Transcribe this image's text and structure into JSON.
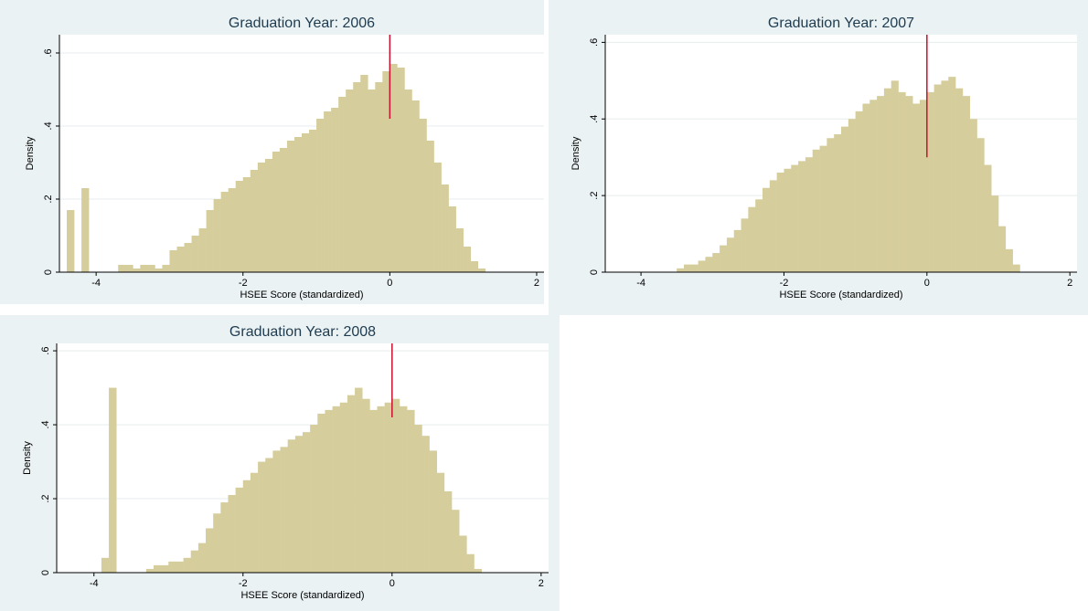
{
  "chart_data": [
    {
      "type": "histogram",
      "title": "Graduation Year: 2006",
      "xlabel": "HSEE Score (standardized)",
      "ylabel": "Density",
      "bins": [
        -4.4,
        -4.3,
        -4.2,
        -4.1,
        -4.0,
        -3.9,
        -3.8,
        -3.7,
        -3.6,
        -3.5,
        -3.4,
        -3.3,
        -3.2,
        -3.1,
        -3.0,
        -2.9,
        -2.8,
        -2.7,
        -2.6,
        -2.5,
        -2.4,
        -2.3,
        -2.2,
        -2.1,
        -2.0,
        -1.9,
        -1.8,
        -1.7,
        -1.6,
        -1.5,
        -1.4,
        -1.3,
        -1.2,
        -1.1,
        -1.0,
        -0.9,
        -0.8,
        -0.7,
        -0.6,
        -0.5,
        -0.4,
        -0.3,
        -0.2,
        -0.1,
        0.0,
        0.1,
        0.2,
        0.3,
        0.4,
        0.5,
        0.6,
        0.7,
        0.8,
        0.9,
        1.0,
        1.1,
        1.2,
        1.3,
        1.4,
        1.5,
        1.6
      ],
      "values": [
        0.17,
        0,
        0.23,
        0,
        0,
        0,
        0,
        0.02,
        0.02,
        0.01,
        0.02,
        0.02,
        0.01,
        0.02,
        0.06,
        0.07,
        0.08,
        0.1,
        0.12,
        0.17,
        0.2,
        0.22,
        0.23,
        0.25,
        0.26,
        0.28,
        0.3,
        0.31,
        0.33,
        0.34,
        0.36,
        0.37,
        0.38,
        0.39,
        0.42,
        0.44,
        0.45,
        0.48,
        0.5,
        0.52,
        0.54,
        0.5,
        0.52,
        0.55,
        0.57,
        0.56,
        0.5,
        0.47,
        0.42,
        0.36,
        0.3,
        0.24,
        0.18,
        0.12,
        0.07,
        0.03,
        0.01,
        0,
        0,
        0
      ],
      "color": "#d6cd9c",
      "cutoff": {
        "x": 0,
        "ymin": 0.42,
        "color": "#c8102e"
      },
      "xlim": [
        -4.5,
        2.1
      ],
      "ylim": [
        0,
        0.65
      ],
      "xticks": [
        -4,
        -2,
        0,
        2
      ],
      "yticks": [
        0,
        {
          "value": 0.2,
          "label": ".2"
        },
        {
          "value": 0.4,
          "label": ".4"
        },
        {
          "value": 0.6,
          "label": ".6"
        }
      ],
      "grid": true
    },
    {
      "type": "histogram",
      "title": "Graduation Year: 2007",
      "xlabel": "HSEE Score (standardized)",
      "ylabel": "Density",
      "bins": [
        -4.4,
        -4.3,
        -4.2,
        -4.1,
        -4.0,
        -3.9,
        -3.8,
        -3.7,
        -3.6,
        -3.5,
        -3.4,
        -3.3,
        -3.2,
        -3.1,
        -3.0,
        -2.9,
        -2.8,
        -2.7,
        -2.6,
        -2.5,
        -2.4,
        -2.3,
        -2.2,
        -2.1,
        -2.0,
        -1.9,
        -1.8,
        -1.7,
        -1.6,
        -1.5,
        -1.4,
        -1.3,
        -1.2,
        -1.1,
        -1.0,
        -0.9,
        -0.8,
        -0.7,
        -0.6,
        -0.5,
        -0.4,
        -0.3,
        -0.2,
        -0.1,
        0.0,
        0.1,
        0.2,
        0.3,
        0.4,
        0.5,
        0.6,
        0.7,
        0.8,
        0.9,
        1.0,
        1.1,
        1.2,
        1.3,
        1.4,
        1.5,
        1.6
      ],
      "values": [
        0,
        0,
        0,
        0,
        0,
        0,
        0,
        0,
        0,
        0.01,
        0.02,
        0.02,
        0.03,
        0.04,
        0.05,
        0.07,
        0.09,
        0.11,
        0.14,
        0.17,
        0.19,
        0.22,
        0.24,
        0.26,
        0.27,
        0.28,
        0.29,
        0.3,
        0.32,
        0.33,
        0.35,
        0.36,
        0.38,
        0.4,
        0.42,
        0.44,
        0.45,
        0.46,
        0.48,
        0.5,
        0.47,
        0.46,
        0.44,
        0.45,
        0.47,
        0.49,
        0.5,
        0.51,
        0.48,
        0.46,
        0.4,
        0.35,
        0.28,
        0.2,
        0.12,
        0.06,
        0.02,
        0,
        0,
        0
      ],
      "color": "#d6cd9c",
      "cutoff": {
        "x": 0,
        "ymin": 0.3,
        "color": "#c8102e"
      },
      "xlim": [
        -4.5,
        2.1
      ],
      "ylim": [
        0,
        0.62
      ],
      "xticks": [
        -4,
        -2,
        0,
        2
      ],
      "yticks": [
        0,
        {
          "value": 0.2,
          "label": ".2"
        },
        {
          "value": 0.4,
          "label": ".4"
        },
        {
          "value": 0.6,
          "label": ".6"
        }
      ],
      "grid": true
    },
    {
      "type": "histogram",
      "title": "Graduation Year: 2008",
      "xlabel": "HSEE Score (standardized)",
      "ylabel": "Density",
      "bins": [
        -4.4,
        -4.3,
        -4.2,
        -4.1,
        -4.0,
        -3.9,
        -3.8,
        -3.7,
        -3.6,
        -3.5,
        -3.4,
        -3.3,
        -3.2,
        -3.1,
        -3.0,
        -2.9,
        -2.8,
        -2.7,
        -2.6,
        -2.5,
        -2.4,
        -2.3,
        -2.2,
        -2.1,
        -2.0,
        -1.9,
        -1.8,
        -1.7,
        -1.6,
        -1.5,
        -1.4,
        -1.3,
        -1.2,
        -1.1,
        -1.0,
        -0.9,
        -0.8,
        -0.7,
        -0.6,
        -0.5,
        -0.4,
        -0.3,
        -0.2,
        -0.1,
        0.0,
        0.1,
        0.2,
        0.3,
        0.4,
        0.5,
        0.6,
        0.7,
        0.8,
        0.9,
        1.0,
        1.1,
        1.2,
        1.3,
        1.4,
        1.5,
        1.6
      ],
      "values": [
        0,
        0,
        0,
        0,
        0,
        0.04,
        0.5,
        0,
        0,
        0,
        0,
        0.01,
        0.02,
        0.02,
        0.03,
        0.03,
        0.04,
        0.06,
        0.08,
        0.12,
        0.16,
        0.19,
        0.21,
        0.23,
        0.25,
        0.27,
        0.3,
        0.31,
        0.33,
        0.34,
        0.36,
        0.37,
        0.38,
        0.4,
        0.43,
        0.44,
        0.45,
        0.46,
        0.48,
        0.5,
        0.47,
        0.44,
        0.45,
        0.46,
        0.47,
        0.45,
        0.44,
        0.4,
        0.37,
        0.33,
        0.27,
        0.22,
        0.17,
        0.1,
        0.05,
        0.01,
        0,
        0,
        0,
        0
      ],
      "color": "#d6cd9c",
      "cutoff": {
        "x": 0,
        "ymin": 0.42,
        "color": "#c8102e"
      },
      "xlim": [
        -4.5,
        2.1
      ],
      "ylim": [
        0,
        0.62
      ],
      "xticks": [
        -4,
        -2,
        0,
        2
      ],
      "yticks": [
        0,
        {
          "value": 0.2,
          "label": ".2"
        },
        {
          "value": 0.4,
          "label": ".4"
        },
        {
          "value": 0.6,
          "label": ".6"
        }
      ],
      "grid": true
    }
  ]
}
